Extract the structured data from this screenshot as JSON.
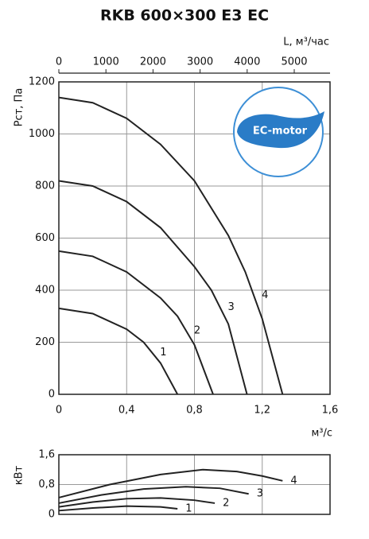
{
  "chart_data": [
    {
      "type": "line",
      "title": "RKB 600×300 E3 EC",
      "xlabel": "м³/с",
      "ylabel": "Рст, Па",
      "x2label": "L, м³/час",
      "badge": "EC-motor",
      "xlim": [
        0,
        1.6
      ],
      "xticks": [
        0,
        {
          "value": 0.4,
          "label": "0,4"
        },
        {
          "value": 0.8,
          "label": "0,8"
        },
        {
          "value": 1.2,
          "label": "1,2"
        },
        {
          "value": 1.6,
          "label": "1,6"
        }
      ],
      "x2lim": [
        0,
        5760
      ],
      "x2ticks": [
        0,
        1000,
        2000,
        3000,
        4000,
        5000
      ],
      "ylim": [
        0,
        1200
      ],
      "yticks": [
        0,
        200,
        400,
        600,
        800,
        1000,
        1200
      ],
      "grid": true,
      "xtick_labels": true,
      "series": [
        {
          "name": "1",
          "color": "#222222",
          "x": [
            0,
            0.2,
            0.4,
            0.5,
            0.6,
            0.7
          ],
          "values": [
            330,
            310,
            250,
            200,
            120,
            0
          ]
        },
        {
          "name": "2",
          "color": "#222222",
          "x": [
            0,
            0.2,
            0.4,
            0.6,
            0.7,
            0.8,
            0.91
          ],
          "values": [
            550,
            530,
            470,
            370,
            300,
            190,
            0
          ]
        },
        {
          "name": "3",
          "color": "#222222",
          "x": [
            0,
            0.2,
            0.4,
            0.6,
            0.8,
            0.9,
            1.0,
            1.11
          ],
          "values": [
            820,
            800,
            740,
            640,
            490,
            400,
            270,
            0
          ]
        },
        {
          "name": "4",
          "color": "#222222",
          "x": [
            0,
            0.2,
            0.4,
            0.6,
            0.8,
            1.0,
            1.1,
            1.2,
            1.32
          ],
          "values": [
            1140,
            1120,
            1060,
            960,
            820,
            610,
            470,
            290,
            0
          ]
        }
      ]
    },
    {
      "type": "line",
      "ylabel": "кВт",
      "xlim": [
        0,
        1.6
      ],
      "xticks": [
        0,
        {
          "value": 0.4,
          "label": "0,4"
        },
        {
          "value": 0.8,
          "label": "0,8"
        },
        {
          "value": 1.2,
          "label": "1,2"
        },
        {
          "value": 1.6,
          "label": "1,6"
        }
      ],
      "xtick_labels": false,
      "ylim": [
        0,
        1.6
      ],
      "yticks": [
        0,
        {
          "value": 0.8,
          "label": "0,8"
        },
        {
          "value": 1.6,
          "label": "1,6"
        }
      ],
      "grid": true,
      "series": [
        {
          "name": "1",
          "color": "#222222",
          "x": [
            0,
            0.2,
            0.4,
            0.6,
            0.7
          ],
          "values": [
            0.1,
            0.17,
            0.22,
            0.2,
            0.15
          ]
        },
        {
          "name": "2",
          "color": "#222222",
          "x": [
            0,
            0.2,
            0.4,
            0.6,
            0.8,
            0.92
          ],
          "values": [
            0.2,
            0.33,
            0.42,
            0.44,
            0.38,
            0.3
          ]
        },
        {
          "name": "3",
          "color": "#222222",
          "x": [
            0,
            0.25,
            0.5,
            0.75,
            0.95,
            1.12
          ],
          "values": [
            0.3,
            0.52,
            0.68,
            0.74,
            0.7,
            0.55
          ]
        },
        {
          "name": "4",
          "color": "#222222",
          "x": [
            0,
            0.3,
            0.6,
            0.85,
            1.05,
            1.2,
            1.32
          ],
          "values": [
            0.45,
            0.8,
            1.07,
            1.2,
            1.15,
            1.03,
            0.9
          ]
        }
      ]
    }
  ]
}
